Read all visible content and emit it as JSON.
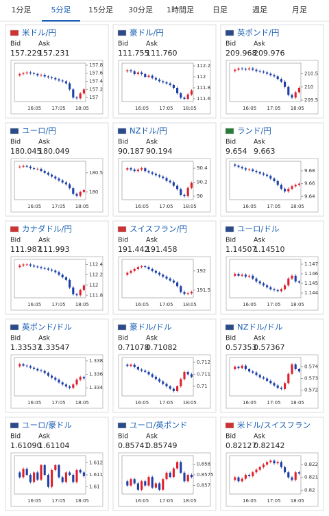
{
  "tabs": [
    "1分足",
    "5分足",
    "15分足",
    "30分足",
    "1時間足",
    "日足",
    "週足",
    "月足"
  ],
  "selected_tab": 1,
  "chart_data": [
    {
      "type": "candlestick",
      "title": "米ドル/円",
      "bid_label": "Bid",
      "ask_label": "Ask",
      "bid": "157.229",
      "ask": "157.231",
      "x_labels": [
        "16:05",
        "17:05",
        "18:05"
      ],
      "ylim": [
        156.9,
        157.85
      ],
      "yticks": [
        157,
        157.2,
        157.4,
        157.6,
        157.8
      ],
      "values": [
        157.55,
        157.58,
        157.6,
        157.62,
        157.6,
        157.58,
        157.55,
        157.56,
        157.52,
        157.5,
        157.48,
        157.45,
        157.42,
        157.4,
        157.35,
        157.2,
        157.0,
        156.98,
        157.1,
        157.2
      ]
    },
    {
      "type": "candlestick",
      "title": "豪ドル/円",
      "bid_label": "Bid",
      "ask_label": "Ask",
      "bid": "111.755",
      "ask": "111.760",
      "x_labels": [
        "16:05",
        "17:05",
        "18:05"
      ],
      "ylim": [
        111.55,
        112.25
      ],
      "yticks": [
        111.6,
        111.8,
        112,
        112.2
      ],
      "values": [
        112.1,
        112.12,
        112.1,
        112.05,
        112.08,
        112.05,
        112.0,
        112.02,
        111.98,
        111.95,
        111.92,
        111.9,
        111.88,
        111.85,
        111.8,
        111.7,
        111.62,
        111.6,
        111.68,
        111.75
      ]
    },
    {
      "type": "candlestick",
      "title": "英ポンド/円",
      "bid_label": "Bid",
      "ask_label": "Ask",
      "bid": "209.968",
      "ask": "209.976",
      "x_labels": [
        "16:05",
        "17:05",
        "18:05"
      ],
      "ylim": [
        209.45,
        210.9
      ],
      "yticks": [
        209.5,
        210,
        210.5
      ],
      "values": [
        210.6,
        210.65,
        210.7,
        210.68,
        210.66,
        210.7,
        210.65,
        210.6,
        210.58,
        210.55,
        210.5,
        210.45,
        210.4,
        210.3,
        210.2,
        210.0,
        209.7,
        209.6,
        209.8,
        209.97
      ]
    },
    {
      "type": "candlestick",
      "title": "ユーロ/円",
      "bid_label": "Bid",
      "ask_label": "Ask",
      "bid": "180.045",
      "ask": "180.049",
      "x_labels": [
        "16:05",
        "17:05",
        "18:05"
      ],
      "ylim": [
        179.8,
        180.8
      ],
      "yticks": [
        180,
        180.5
      ],
      "values": [
        180.65,
        180.66,
        180.68,
        180.66,
        180.62,
        180.6,
        180.6,
        180.55,
        180.5,
        180.45,
        180.4,
        180.35,
        180.3,
        180.25,
        180.2,
        180.1,
        179.95,
        179.9,
        180.0,
        180.05
      ]
    },
    {
      "type": "candlestick",
      "title": "NZドル/円",
      "bid_label": "Bid",
      "ask_label": "Ask",
      "bid": "90.187",
      "ask": "90.194",
      "x_labels": [
        "16:05",
        "17:05",
        "18:05"
      ],
      "ylim": [
        89.95,
        90.5
      ],
      "yticks": [
        90,
        90.2,
        90.4
      ],
      "values": [
        90.38,
        90.4,
        90.38,
        90.36,
        90.38,
        90.4,
        90.36,
        90.34,
        90.32,
        90.3,
        90.28,
        90.26,
        90.22,
        90.2,
        90.15,
        90.1,
        90.02,
        90.0,
        90.12,
        90.19
      ]
    },
    {
      "type": "candlestick",
      "title": "ランド/円",
      "bid_label": "Bid",
      "ask_label": "Ask",
      "bid": "9.654",
      "ask": "9.663",
      "x_labels": [
        "16:05",
        "17:05",
        "18:05"
      ],
      "ylim": [
        9.635,
        9.695
      ],
      "yticks": [
        9.64,
        9.66,
        9.68
      ],
      "values": [
        9.69,
        9.688,
        9.686,
        9.684,
        9.682,
        9.682,
        9.68,
        9.678,
        9.676,
        9.674,
        9.672,
        9.668,
        9.664,
        9.658,
        9.652,
        9.648,
        9.652,
        9.656,
        9.658,
        9.66
      ]
    },
    {
      "type": "candlestick",
      "title": "カナダドル/円",
      "bid_label": "Bid",
      "ask_label": "Ask",
      "bid": "111.987",
      "ask": "111.993",
      "x_labels": [
        "16:05",
        "17:05",
        "18:05"
      ],
      "ylim": [
        111.75,
        112.5
      ],
      "yticks": [
        111.8,
        112,
        112.2,
        112.4
      ],
      "values": [
        112.35,
        112.38,
        112.4,
        112.4,
        112.38,
        112.36,
        112.35,
        112.33,
        112.32,
        112.3,
        112.28,
        112.25,
        112.2,
        112.15,
        112.1,
        111.95,
        111.82,
        111.8,
        111.9,
        111.99
      ]
    },
    {
      "type": "candlestick",
      "title": "スイスフラン/円",
      "bid_label": "Bid",
      "ask_label": "Ask",
      "bid": "191.442",
      "ask": "191.458",
      "x_labels": [
        "16:05",
        "17:05",
        "18:05"
      ],
      "ylim": [
        191.3,
        192.3
      ],
      "yticks": [
        191.5,
        192
      ],
      "values": [
        191.9,
        191.95,
        192.0,
        192.05,
        192.1,
        192.12,
        192.1,
        192.05,
        192.0,
        191.95,
        191.9,
        191.85,
        191.8,
        191.75,
        191.7,
        191.6,
        191.45,
        191.4,
        191.42,
        191.45
      ]
    },
    {
      "type": "candlestick",
      "title": "ユーロ/ドル",
      "bid_label": "Bid",
      "ask_label": "Ask",
      "bid": "1.14507",
      "ask": "1.14510",
      "x_labels": [
        "16:05",
        "17:05",
        "18:05"
      ],
      "ylim": [
        1.1435,
        1.1475
      ],
      "yticks": [
        1.144,
        1.145,
        1.146,
        1.147
      ],
      "values": [
        1.1458,
        1.146,
        1.1458,
        1.1459,
        1.1457,
        1.1458,
        1.1455,
        1.1452,
        1.145,
        1.1448,
        1.1446,
        1.1444,
        1.1443,
        1.1442,
        1.1444,
        1.1448,
        1.1455,
        1.1458,
        1.1452,
        1.1451
      ]
    },
    {
      "type": "candlestick",
      "title": "英ポンド/ドル",
      "bid_label": "Bid",
      "ask_label": "Ask",
      "bid": "1.33537",
      "ask": "1.33547",
      "x_labels": [
        "16:05",
        "17:05",
        "18:05"
      ],
      "ylim": [
        1.3328,
        1.3385
      ],
      "yticks": [
        1.334,
        1.336,
        1.338
      ],
      "values": [
        1.3372,
        1.3375,
        1.3373,
        1.3372,
        1.337,
        1.3368,
        1.3366,
        1.3365,
        1.3362,
        1.3358,
        1.3355,
        1.3352,
        1.3348,
        1.3345,
        1.3342,
        1.334,
        1.3345,
        1.3352,
        1.3356,
        1.3354
      ]
    },
    {
      "type": "candlestick",
      "title": "豪ドル/ドル",
      "bid_label": "Bid",
      "ask_label": "Ask",
      "bid": "0.71078",
      "ask": "0.71082",
      "x_labels": [
        "16:05",
        "17:05",
        "18:05"
      ],
      "ylim": [
        0.7092,
        0.7124
      ],
      "yticks": [
        0.71,
        0.711,
        0.712
      ],
      "values": [
        0.7118,
        0.7117,
        0.7118,
        0.7116,
        0.7114,
        0.7113,
        0.7112,
        0.711,
        0.7108,
        0.7106,
        0.7104,
        0.7102,
        0.71,
        0.7098,
        0.7096,
        0.71,
        0.7106,
        0.7112,
        0.711,
        0.7108
      ]
    },
    {
      "type": "candlestick",
      "title": "NZドル/ドル",
      "bid_label": "Bid",
      "ask_label": "Ask",
      "bid": "0.57353",
      "ask": "0.57367",
      "x_labels": [
        "16:05",
        "17:05",
        "18:05"
      ],
      "ylim": [
        0.5715,
        0.5748
      ],
      "yticks": [
        0.572,
        0.573,
        0.574
      ],
      "values": [
        0.5738,
        0.574,
        0.5739,
        0.5741,
        0.5738,
        0.5736,
        0.5735,
        0.5733,
        0.5731,
        0.573,
        0.5728,
        0.5726,
        0.5724,
        0.5722,
        0.5721,
        0.5726,
        0.5734,
        0.5742,
        0.5738,
        0.5736
      ]
    },
    {
      "type": "candlestick",
      "title": "ユーロ/豪ドル",
      "bid_label": "Bid",
      "ask_label": "Ask",
      "bid": "1.61090",
      "ask": "1.61104",
      "x_labels": [
        "16:05",
        "17:05",
        "18:05"
      ],
      "ylim": [
        1.6094,
        1.6126
      ],
      "yticks": [
        1.61,
        1.611,
        1.612
      ],
      "values": [
        1.6112,
        1.6108,
        1.6115,
        1.611,
        1.6104,
        1.6112,
        1.6106,
        1.6118,
        1.611,
        1.61,
        1.6114,
        1.6118,
        1.6108,
        1.6104,
        1.6112,
        1.611,
        1.6104,
        1.6114,
        1.6112,
        1.6109
      ]
    },
    {
      "type": "candlestick",
      "title": "ユーロ/英ポンド",
      "bid_label": "Bid",
      "ask_label": "Ask",
      "bid": "0.85741",
      "ask": "0.85749",
      "x_labels": [
        "16:05",
        "17:05",
        "18:05"
      ],
      "ylim": [
        0.8566,
        0.8584
      ],
      "yticks": [
        0.857,
        0.8575,
        0.858
      ],
      "values": [
        0.8572,
        0.857,
        0.8573,
        0.8571,
        0.8568,
        0.8572,
        0.857,
        0.8574,
        0.8569,
        0.8571,
        0.8568,
        0.8573,
        0.8576,
        0.8574,
        0.8578,
        0.8581,
        0.8576,
        0.8572,
        0.8575,
        0.8574
      ]
    },
    {
      "type": "candlestick",
      "title": "米ドル/スイスフラン",
      "bid_label": "Bid",
      "ask_label": "Ask",
      "bid": "0.82127",
      "ask": "0.82142",
      "x_labels": [
        "16:05",
        "17:05",
        "18:05"
      ],
      "ylim": [
        0.8197,
        0.8227
      ],
      "yticks": [
        0.82,
        0.821,
        0.822
      ],
      "values": [
        0.8208,
        0.821,
        0.8207,
        0.8209,
        0.8212,
        0.8211,
        0.8214,
        0.8216,
        0.8218,
        0.822,
        0.8222,
        0.8223,
        0.8221,
        0.8222,
        0.8218,
        0.8214,
        0.821,
        0.8208,
        0.8214,
        0.8213
      ]
    }
  ]
}
